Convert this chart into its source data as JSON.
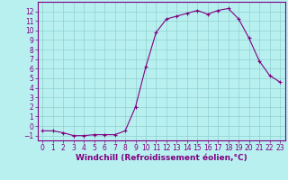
{
  "x": [
    0,
    1,
    2,
    3,
    4,
    5,
    6,
    7,
    8,
    9,
    10,
    11,
    12,
    13,
    14,
    15,
    16,
    17,
    18,
    19,
    20,
    21,
    22,
    23
  ],
  "y": [
    -0.5,
    -0.5,
    -0.7,
    -1.0,
    -1.0,
    -0.9,
    -0.9,
    -0.9,
    -0.5,
    2.0,
    6.2,
    9.8,
    11.2,
    11.5,
    11.8,
    12.1,
    11.7,
    12.1,
    12.3,
    11.2,
    9.2,
    6.8,
    5.3,
    4.6
  ],
  "line_color": "#800080",
  "marker": "+",
  "marker_size": 3,
  "bg_color": "#b8f0f0",
  "grid_color": "#90d0d0",
  "xlabel": "Windchill (Refroidissement éolien,°C)",
  "xlim": [
    -0.5,
    23.5
  ],
  "ylim": [
    -1.5,
    13.0
  ],
  "yticks": [
    -1,
    0,
    1,
    2,
    3,
    4,
    5,
    6,
    7,
    8,
    9,
    10,
    11,
    12
  ],
  "xticks": [
    0,
    1,
    2,
    3,
    4,
    5,
    6,
    7,
    8,
    9,
    10,
    11,
    12,
    13,
    14,
    15,
    16,
    17,
    18,
    19,
    20,
    21,
    22,
    23
  ],
  "tick_fontsize": 5.5,
  "label_fontsize": 6.5,
  "label_color": "#800080",
  "axis_color": "#800080",
  "spine_color": "#800080"
}
